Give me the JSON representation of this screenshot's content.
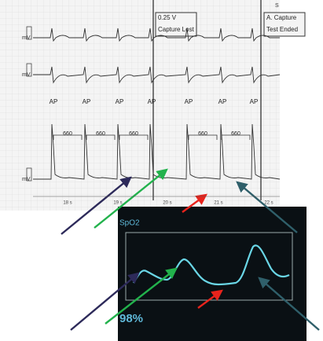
{
  "ecg": {
    "corner": "S",
    "boxes": [
      {
        "lines": [
          "0.25 V",
          "Capture Lost"
        ]
      },
      {
        "lines": [
          "A. Capture",
          "Test Ended"
        ]
      }
    ],
    "channel_labels": [
      "mV",
      "mV",
      "mV"
    ],
    "pace_labels": [
      "AP",
      "AP",
      "AP",
      "AP",
      "AP",
      "AP",
      "AP"
    ],
    "intervals": [
      "660",
      "660",
      "660",
      "660",
      "660"
    ],
    "time_labels": [
      "18 s",
      "19 s",
      "20 s",
      "21 s",
      "22 s"
    ]
  },
  "monitor": {
    "label": "SpO2",
    "value": "98%"
  }
}
